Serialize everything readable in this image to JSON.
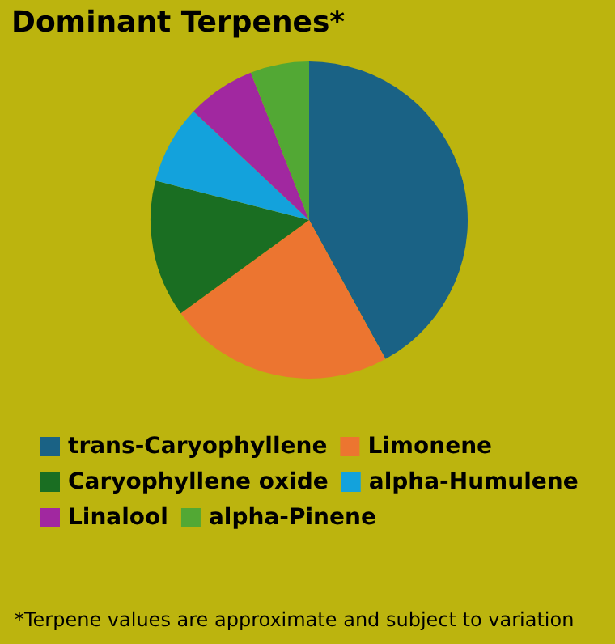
{
  "chart_data": {
    "type": "pie",
    "title": "Dominant Terpenes*",
    "categories": [
      "trans-Caryophyllene",
      "Limonene",
      "Caryophyllene oxide",
      "alpha-Humulene",
      "Linalool",
      "alpha-Pinene"
    ],
    "values": [
      42,
      23,
      14,
      8,
      7,
      6
    ],
    "colors": [
      "#1a6285",
      "#ec7530",
      "#1a6e22",
      "#13a2dc",
      "#a128a0",
      "#52a834"
    ],
    "legend": "bottom",
    "annotations": [
      "*Terpene values are approximate and subject to variation"
    ]
  }
}
